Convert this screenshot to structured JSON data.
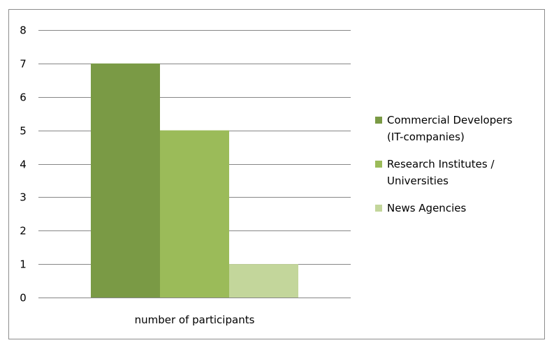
{
  "colors": {
    "commercial": "#7a9a45",
    "research": "#9bbb59",
    "news": "#c3d69b",
    "grid": "#868686",
    "frame": "#8c8c8c"
  },
  "chart_data": {
    "type": "bar",
    "categories": [
      "number of participants"
    ],
    "series": [
      {
        "name": "Commercial Developers (IT-companies)",
        "values": [
          7
        ]
      },
      {
        "name": "Research Institutes / Universities",
        "values": [
          5
        ]
      },
      {
        "name": "News Agencies",
        "values": [
          1
        ]
      }
    ],
    "xlabel": "",
    "ylabel": "",
    "ylim": [
      0,
      8
    ],
    "yticks": [
      "0",
      "1",
      "2",
      "3",
      "4",
      "5",
      "6",
      "7",
      "8"
    ],
    "grid": true,
    "legend_position": "right"
  },
  "legend": {
    "items": [
      {
        "line1": "Commercial Developers",
        "line2": "(IT-companies)"
      },
      {
        "line1": "Research Institutes /",
        "line2": "Universities"
      },
      {
        "line1": "News Agencies",
        "line2": ""
      }
    ]
  }
}
